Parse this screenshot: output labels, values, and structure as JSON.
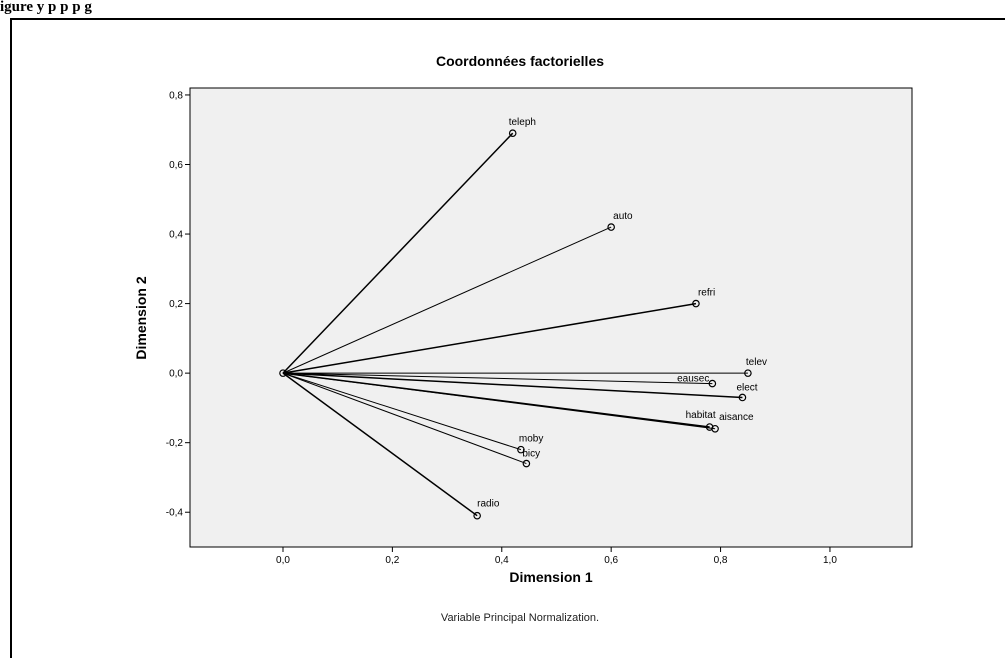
{
  "page": {
    "caption": "igure       y          p      p    p      g"
  },
  "chart_data": {
    "type": "scatter",
    "title": "Coordonnées factorielles",
    "xlabel": "Dimension 1",
    "ylabel": "Dimension 2",
    "note": "Variable Principal Normalization.",
    "xlim": [
      -0.17,
      1.15
    ],
    "ylim": [
      -0.5,
      0.82
    ],
    "xticks": [
      0.0,
      0.2,
      0.4,
      0.6,
      0.8,
      1.0
    ],
    "xtick_labels": [
      "0,0",
      "0,2",
      "0,4",
      "0,6",
      "0,8",
      "1,0"
    ],
    "yticks": [
      -0.4,
      -0.2,
      0.0,
      0.2,
      0.4,
      0.6,
      0.8
    ],
    "ytick_labels": [
      "-0,4",
      "-0,2",
      "0,0",
      "0,2",
      "0,4",
      "0,6",
      "0,8"
    ],
    "origin": [
      0.0,
      0.0
    ],
    "plot_background": "#f0f0f0",
    "points": [
      {
        "label": "teleph",
        "x": 0.42,
        "y": 0.69
      },
      {
        "label": "auto",
        "x": 0.6,
        "y": 0.42
      },
      {
        "label": "refri",
        "x": 0.755,
        "y": 0.2
      },
      {
        "label": "telev",
        "x": 0.85,
        "y": 0.0
      },
      {
        "label": "eausec",
        "x": 0.785,
        "y": -0.03
      },
      {
        "label": "elect",
        "x": 0.84,
        "y": -0.07
      },
      {
        "label": "habitat",
        "x": 0.78,
        "y": -0.155
      },
      {
        "label": "aisance",
        "x": 0.79,
        "y": -0.16
      },
      {
        "label": "moby",
        "x": 0.435,
        "y": -0.22
      },
      {
        "label": "bicy",
        "x": 0.445,
        "y": -0.26
      },
      {
        "label": "radio",
        "x": 0.355,
        "y": -0.41
      }
    ]
  }
}
